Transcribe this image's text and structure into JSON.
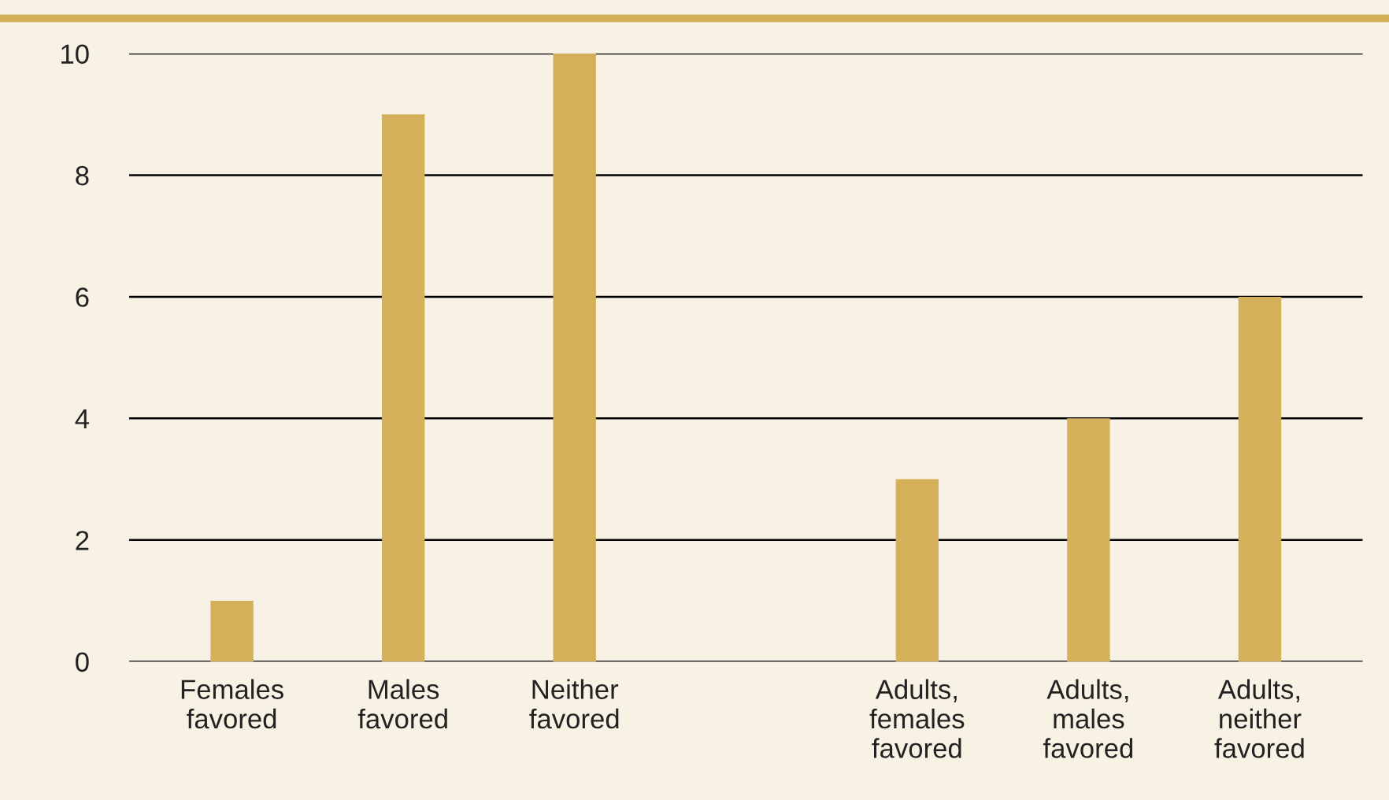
{
  "chart_data": {
    "type": "bar",
    "categories": [
      "Females\nfavored",
      "Males\nfavored",
      "Neither\nfavored",
      null,
      "Adults,\nfemales\nfavored",
      "Adults,\nmales\nfavored",
      "Adults,\nneither\nfavored"
    ],
    "values": [
      1,
      9,
      10,
      null,
      3,
      4,
      6
    ],
    "color": "#d4b05a",
    "ylim": [
      0,
      10
    ],
    "yticks": [
      0,
      2,
      4,
      6,
      8,
      10
    ],
    "grid": "y",
    "legend": false
  }
}
